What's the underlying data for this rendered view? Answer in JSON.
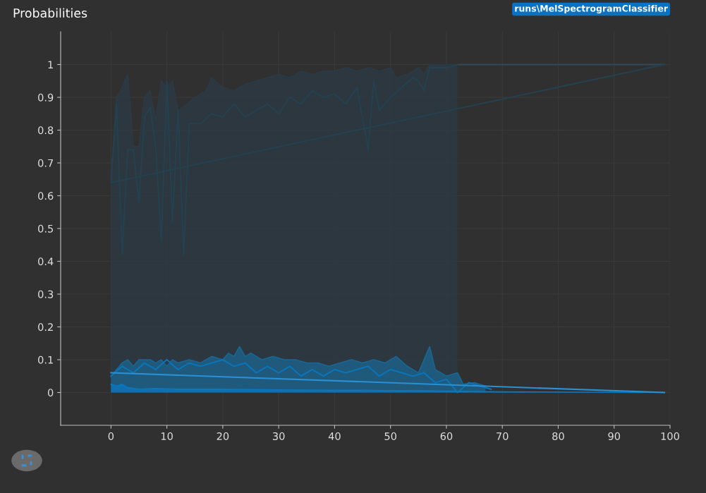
{
  "chart_data": {
    "type": "area",
    "title": "Probabilities",
    "annotations": [
      "runs\\MelSpectrogramClassifier"
    ],
    "xlim": [
      -9,
      100
    ],
    "xticks": [
      0,
      10,
      20,
      30,
      40,
      50,
      60,
      70,
      80,
      90,
      100
    ],
    "ylim": [
      -0.1,
      1.1
    ],
    "yticks": [
      0,
      0.1,
      0.2,
      0.3,
      0.4,
      0.5,
      0.6,
      0.7,
      0.8,
      0.9,
      1
    ],
    "grid": true,
    "legend": false,
    "line_style": "solid",
    "marker": "none",
    "series": [
      {
        "color": "#2b3a44",
        "x": [
          0,
          1,
          2,
          3,
          4,
          5,
          6,
          7,
          8,
          9,
          10,
          11,
          12,
          13,
          15,
          17,
          18,
          20,
          22,
          24,
          26,
          28,
          30,
          32,
          34,
          36,
          38,
          40,
          42,
          44,
          46,
          48,
          50,
          51,
          53,
          55,
          56,
          57,
          60,
          62
        ],
        "values": [
          0.66,
          0.9,
          0.93,
          0.97,
          0.75,
          0.75,
          0.9,
          0.92,
          0.83,
          0.95,
          0.93,
          0.95,
          0.86,
          0.87,
          0.9,
          0.92,
          0.96,
          0.93,
          0.92,
          0.94,
          0.95,
          0.96,
          0.97,
          0.96,
          0.98,
          0.97,
          0.98,
          0.98,
          0.99,
          0.98,
          0.99,
          0.98,
          0.99,
          0.96,
          0.97,
          0.99,
          0.97,
          1.0,
          1.0,
          1.0
        ]
      },
      {
        "type": "line",
        "color": "#33495a",
        "x": [
          62,
          99
        ],
        "values": [
          1.0,
          1.0
        ]
      },
      {
        "type": "line",
        "color": "#24414f",
        "x": [
          0,
          1,
          2,
          3,
          4,
          5,
          6,
          7,
          8,
          9,
          10,
          11,
          12,
          13,
          14,
          16,
          18,
          20,
          22,
          24,
          26,
          28,
          30,
          32,
          34,
          36,
          38,
          40,
          42,
          44,
          46,
          47,
          48,
          50,
          52,
          54,
          55,
          56,
          57,
          60,
          62
        ],
        "values": [
          0.64,
          0.88,
          0.42,
          0.74,
          0.74,
          0.58,
          0.84,
          0.87,
          0.75,
          0.46,
          0.95,
          0.52,
          0.86,
          0.42,
          0.82,
          0.82,
          0.85,
          0.84,
          0.88,
          0.84,
          0.86,
          0.88,
          0.85,
          0.9,
          0.88,
          0.92,
          0.9,
          0.91,
          0.88,
          0.93,
          0.74,
          0.95,
          0.86,
          0.9,
          0.93,
          0.96,
          0.95,
          0.92,
          0.99,
          0.99,
          1.0
        ]
      },
      {
        "type": "line",
        "color": "#24414f",
        "x": [
          0,
          99
        ],
        "values": [
          0.64,
          1.0
        ]
      },
      {
        "color": "#1b6592",
        "x": [
          0,
          1,
          2,
          3,
          4,
          5,
          7,
          8,
          9,
          10,
          11,
          12,
          14,
          16,
          18,
          20,
          21,
          22,
          23,
          24,
          25,
          27,
          29,
          31,
          33,
          35,
          37,
          39,
          41,
          43,
          45,
          47,
          49,
          51,
          53,
          55,
          57,
          58,
          60,
          62,
          63,
          65,
          67
        ],
        "values": [
          0.05,
          0.07,
          0.09,
          0.1,
          0.08,
          0.1,
          0.1,
          0.09,
          0.1,
          0.08,
          0.1,
          0.09,
          0.1,
          0.09,
          0.11,
          0.1,
          0.12,
          0.11,
          0.14,
          0.11,
          0.12,
          0.1,
          0.11,
          0.1,
          0.1,
          0.09,
          0.09,
          0.08,
          0.09,
          0.1,
          0.09,
          0.1,
          0.09,
          0.11,
          0.08,
          0.06,
          0.14,
          0.07,
          0.05,
          0.06,
          0.025,
          0.03,
          0.02
        ]
      },
      {
        "type": "line",
        "color": "#0b74b8",
        "x": [
          0,
          2,
          4,
          6,
          8,
          10,
          12,
          14,
          16,
          18,
          20,
          22,
          24,
          26,
          28,
          30,
          32,
          34,
          36,
          38,
          40,
          42,
          44,
          46,
          48,
          50,
          52,
          54,
          56,
          58,
          60,
          62,
          64,
          66,
          68
        ],
        "values": [
          0.05,
          0.08,
          0.06,
          0.09,
          0.07,
          0.1,
          0.07,
          0.09,
          0.08,
          0.09,
          0.1,
          0.08,
          0.09,
          0.06,
          0.08,
          0.06,
          0.08,
          0.05,
          0.07,
          0.05,
          0.07,
          0.06,
          0.07,
          0.08,
          0.05,
          0.07,
          0.06,
          0.05,
          0.06,
          0.03,
          0.04,
          0.0,
          0.03,
          0.02,
          0.01
        ]
      },
      {
        "type": "line",
        "color": "#2a8fd4",
        "x": [
          0,
          99
        ],
        "values": [
          0.06,
          0.0
        ]
      },
      {
        "color": "#0a78c0",
        "x": [
          0,
          1,
          2,
          3,
          5,
          8,
          12,
          20,
          30,
          40,
          50,
          55,
          60,
          65,
          70,
          99
        ],
        "values": [
          0.025,
          0.02,
          0.025,
          0.015,
          0.01,
          0.012,
          0.01,
          0.01,
          0.008,
          0.007,
          0.006,
          0.005,
          0.004,
          0.003,
          0.002,
          0
        ]
      }
    ]
  }
}
